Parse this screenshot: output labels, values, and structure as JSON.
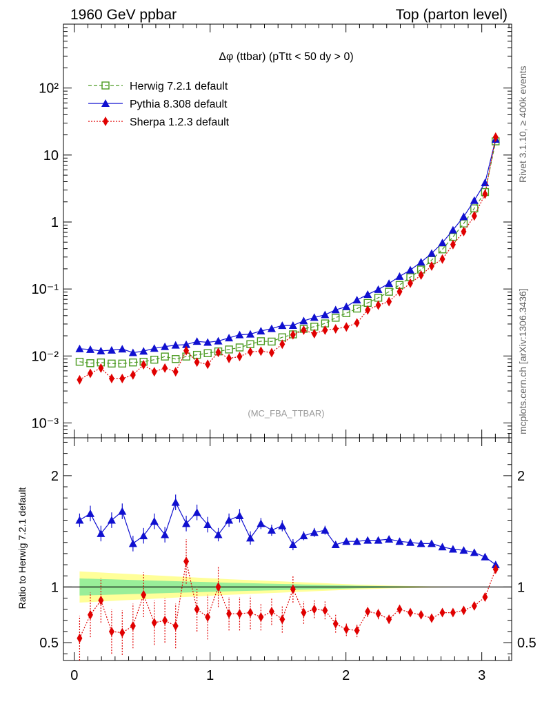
{
  "header": {
    "left": "1960 GeV ppbar",
    "right": "Top (parton level)"
  },
  "side_labels": {
    "rivet": "Rivet 3.1.10, ≥ 400k events",
    "mcplots": "mcplots.cern.ch [arXiv:1306.3436]"
  },
  "chart_data": [
    {
      "type": "line",
      "panel": "main",
      "title": "Δφ (ttbar) (pTtt < 50 dy > 0)",
      "watermark": "(MC_FBA_TTBAR)",
      "scale": "log",
      "ylim": [
        0.0006,
        900
      ],
      "xlim": [
        -0.08,
        3.22
      ],
      "y_ticks": [
        {
          "value": 0.001,
          "label": "10⁻³"
        },
        {
          "value": 0.01,
          "label": "10⁻²"
        },
        {
          "value": 0.1,
          "label": "10⁻¹"
        },
        {
          "value": 1,
          "label": "1"
        },
        {
          "value": 10,
          "label": "10"
        },
        {
          "value": 100,
          "label": "10²"
        }
      ],
      "legend": "top-left",
      "x": [
        0.039,
        0.118,
        0.196,
        0.275,
        0.353,
        0.432,
        0.51,
        0.589,
        0.667,
        0.746,
        0.824,
        0.903,
        0.982,
        1.06,
        1.139,
        1.217,
        1.296,
        1.374,
        1.453,
        1.531,
        1.61,
        1.689,
        1.767,
        1.846,
        1.924,
        2.003,
        2.081,
        2.16,
        2.238,
        2.317,
        2.395,
        2.474,
        2.553,
        2.631,
        2.71,
        2.788,
        2.867,
        2.945,
        3.024,
        3.102
      ],
      "series": [
        {
          "name": "Herwig 7.2.1 default",
          "color": "#4a9a20",
          "marker": "open-square",
          "line": "dashed",
          "values": [
            0.0082,
            0.0078,
            0.008,
            0.0077,
            0.0077,
            0.008,
            0.0082,
            0.0088,
            0.0098,
            0.009,
            0.0098,
            0.0104,
            0.011,
            0.0117,
            0.0125,
            0.0134,
            0.015,
            0.0166,
            0.0164,
            0.019,
            0.021,
            0.0254,
            0.0274,
            0.0306,
            0.0372,
            0.0436,
            0.051,
            0.062,
            0.074,
            0.091,
            0.115,
            0.15,
            0.195,
            0.27,
            0.39,
            0.6,
            0.95,
            1.6,
            2.8,
            16.0
          ]
        },
        {
          "name": "Pythia 8.308 default",
          "color": "#1010d0",
          "marker": "filled-triangle",
          "line": "solid",
          "values": [
            0.0128,
            0.0125,
            0.0119,
            0.0122,
            0.0127,
            0.0112,
            0.0118,
            0.013,
            0.0138,
            0.0145,
            0.0148,
            0.0165,
            0.016,
            0.0167,
            0.0186,
            0.0207,
            0.0212,
            0.0236,
            0.0256,
            0.0285,
            0.0286,
            0.0334,
            0.0376,
            0.0412,
            0.0488,
            0.0545,
            0.0685,
            0.0829,
            0.0984,
            0.121,
            0.154,
            0.192,
            0.252,
            0.34,
            0.49,
            0.76,
            1.2,
            2.1,
            3.85,
            17.2
          ]
        },
        {
          "name": "Sherpa 1.2.3 default",
          "color": "#e00000",
          "marker": "filled-diamond",
          "line": "dotted",
          "values": [
            0.0044,
            0.0055,
            0.0066,
            0.0046,
            0.0046,
            0.0052,
            0.0074,
            0.0058,
            0.0066,
            0.0058,
            0.012,
            0.0081,
            0.0075,
            0.0113,
            0.0092,
            0.0098,
            0.0115,
            0.0118,
            0.0112,
            0.015,
            0.0207,
            0.0243,
            0.0215,
            0.0243,
            0.0254,
            0.0271,
            0.0311,
            0.0485,
            0.0574,
            0.0647,
            0.0914,
            0.122,
            0.161,
            0.22,
            0.28,
            0.46,
            0.72,
            1.23,
            2.6,
            18.5
          ]
        }
      ]
    },
    {
      "type": "line",
      "panel": "ratio",
      "ylabel": "Ratio to Herwig 7.2.1 default",
      "ylim": [
        0.34,
        2.34
      ],
      "xlim": [
        -0.08,
        3.22
      ],
      "y_tick_labels": [
        "0.5",
        "1",
        "2"
      ],
      "x_tick_labels": [
        "0",
        "1",
        "2",
        "3"
      ],
      "reference_line": 1,
      "band_yellow_halfwidth": [
        0.14,
        0.135,
        0.13,
        0.125,
        0.12,
        0.115,
        0.11,
        0.105,
        0.1,
        0.095,
        0.09,
        0.085,
        0.08,
        0.075,
        0.07,
        0.066,
        0.062,
        0.058,
        0.054,
        0.05,
        0.046,
        0.042,
        0.038,
        0.034,
        0.03,
        0.026,
        0.022,
        0.019,
        0.016,
        0.013,
        0.011,
        0.009,
        0.007,
        0.005,
        0.004,
        0.003,
        0.002,
        0.001,
        0.0005,
        0.0
      ],
      "series": [
        {
          "name": "Pythia 8.308 default",
          "color": "#1010d0",
          "values": [
            1.6,
            1.66,
            1.48,
            1.6,
            1.68,
            1.39,
            1.46,
            1.59,
            1.47,
            1.76,
            1.57,
            1.67,
            1.56,
            1.47,
            1.6,
            1.64,
            1.44,
            1.57,
            1.51,
            1.55,
            1.38,
            1.46,
            1.49,
            1.51,
            1.38,
            1.41,
            1.41,
            1.42,
            1.42,
            1.43,
            1.41,
            1.4,
            1.39,
            1.39,
            1.36,
            1.34,
            1.33,
            1.31,
            1.27,
            1.2
          ],
          "errors": [
            0.06,
            0.07,
            0.07,
            0.07,
            0.07,
            0.07,
            0.07,
            0.07,
            0.07,
            0.07,
            0.07,
            0.07,
            0.07,
            0.06,
            0.06,
            0.06,
            0.06,
            0.05,
            0.05,
            0.05,
            0.05,
            0.04,
            0.04,
            0.04,
            0.03,
            0.03,
            0.03,
            0.02,
            0.02,
            0.02,
            0.02,
            0.02,
            0.01,
            0.01,
            0.01,
            0.01,
            0.01,
            0.01,
            0.01,
            0.01
          ]
        },
        {
          "name": "Sherpa 1.2.3 default",
          "color": "#e00000",
          "values": [
            0.54,
            0.75,
            0.88,
            0.6,
            0.59,
            0.65,
            0.93,
            0.68,
            0.7,
            0.65,
            1.23,
            0.8,
            0.73,
            1.0,
            0.76,
            0.76,
            0.77,
            0.73,
            0.78,
            0.71,
            0.98,
            0.77,
            0.8,
            0.79,
            0.67,
            0.62,
            0.61,
            0.78,
            0.76,
            0.71,
            0.8,
            0.77,
            0.75,
            0.72,
            0.77,
            0.77,
            0.79,
            0.83,
            0.91,
            1.16
          ],
          "errors": [
            0.2,
            0.2,
            0.2,
            0.2,
            0.2,
            0.2,
            0.2,
            0.2,
            0.2,
            0.2,
            0.2,
            0.2,
            0.2,
            0.18,
            0.15,
            0.15,
            0.15,
            0.12,
            0.12,
            0.12,
            0.12,
            0.1,
            0.08,
            0.08,
            0.08,
            0.06,
            0.06,
            0.05,
            0.05,
            0.04,
            0.04,
            0.03,
            0.03,
            0.02,
            0.02,
            0.02,
            0.02,
            0.02,
            0.02,
            0.02
          ]
        }
      ]
    }
  ]
}
